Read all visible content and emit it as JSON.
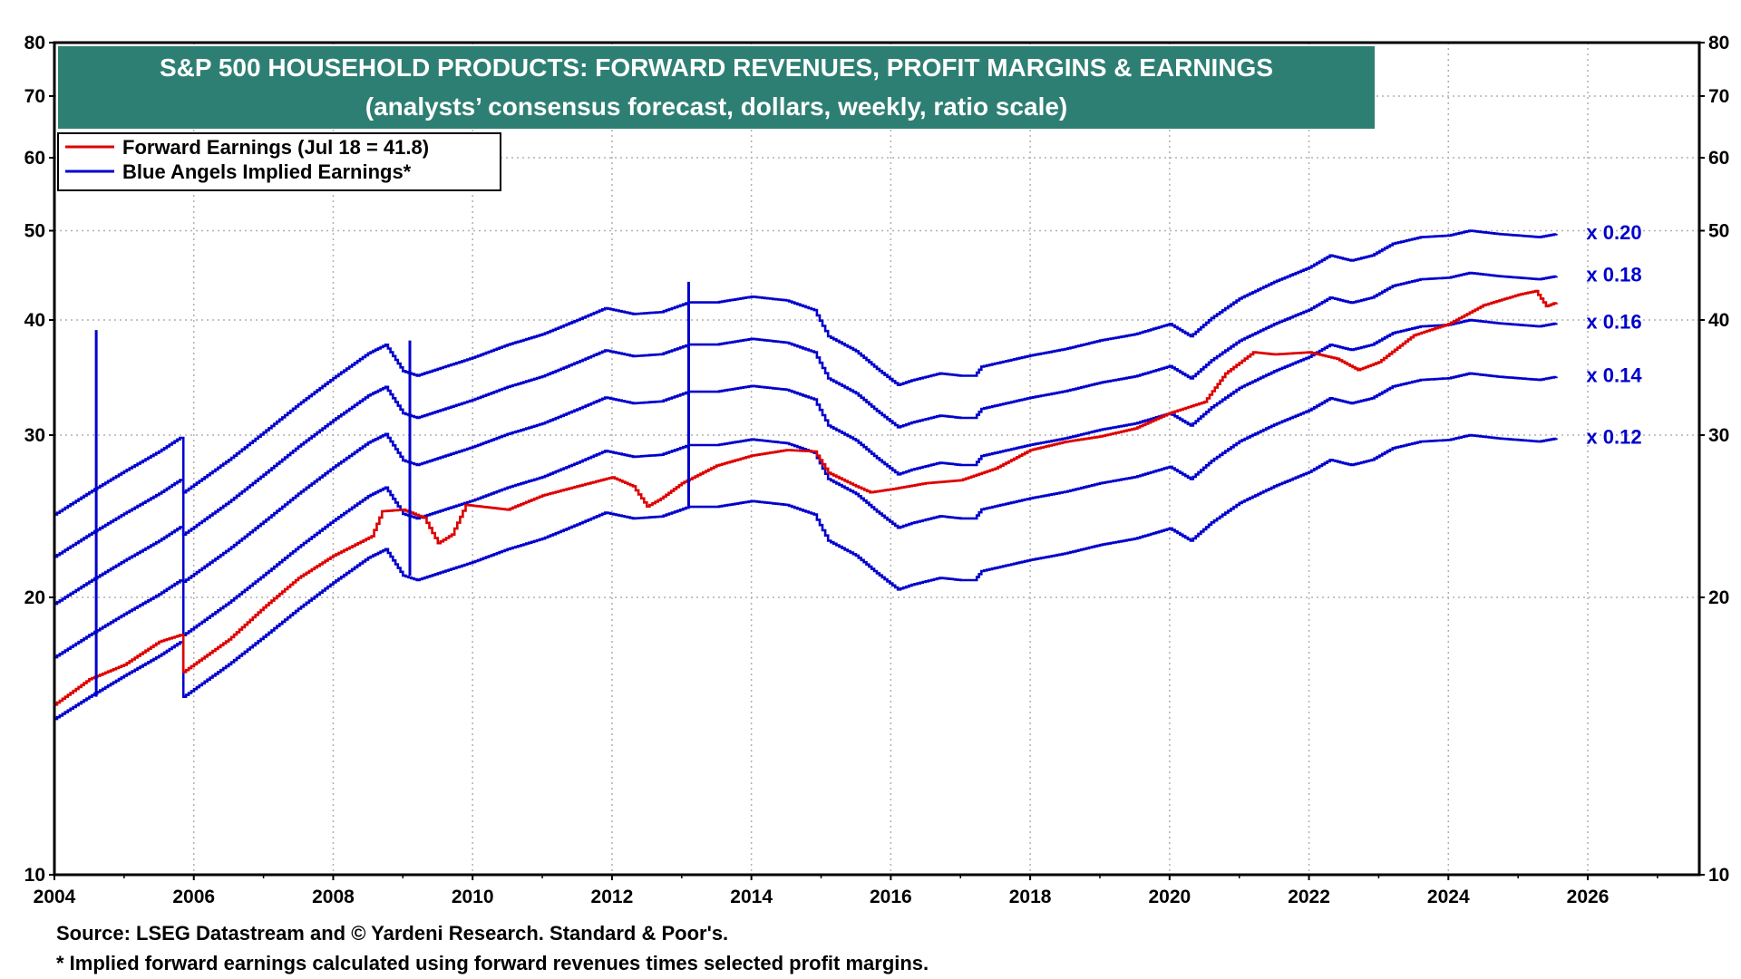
{
  "chart_data": {
    "type": "line",
    "title": "S&P 500 HOUSEHOLD PRODUCTS: FORWARD REVENUES, PROFIT MARGINS & EARNINGS",
    "subtitle": "(analysts’ consensus forecast, dollars, weekly, ratio scale)",
    "y_scale": "log",
    "ylim": [
      10,
      80
    ],
    "xlim": [
      2004,
      2027.6
    ],
    "y_ticks": [
      10,
      20,
      30,
      40,
      50,
      60,
      70,
      80
    ],
    "x_ticks": [
      2004,
      2006,
      2008,
      2010,
      2012,
      2014,
      2016,
      2018,
      2020,
      2022,
      2024,
      2026
    ],
    "grid": true,
    "legend_position": "top-left",
    "legend": [
      {
        "label": "Forward Earnings (Jul 18 = 41.8)",
        "color": "#dd0000"
      },
      {
        "label": "Blue Angels Implied Earnings*",
        "color": "#0000cc"
      }
    ],
    "forward_revenue_basis": [
      [
        2004.0,
        123
      ],
      [
        2004.5,
        130
      ],
      [
        2005.0,
        137
      ],
      [
        2005.5,
        144
      ],
      [
        2005.8,
        149
      ],
      [
        2005.85,
        130
      ],
      [
        2006.5,
        141
      ],
      [
        2007.0,
        151
      ],
      [
        2007.5,
        162
      ],
      [
        2008.0,
        173
      ],
      [
        2008.5,
        184
      ],
      [
        2008.75,
        188
      ],
      [
        2009.0,
        176
      ],
      [
        2009.2,
        174
      ],
      [
        2009.5,
        177
      ],
      [
        2010.0,
        182
      ],
      [
        2010.5,
        188
      ],
      [
        2011.0,
        193
      ],
      [
        2011.5,
        200
      ],
      [
        2011.9,
        206
      ],
      [
        2012.3,
        203
      ],
      [
        2012.7,
        204
      ],
      [
        2013.1,
        209
      ],
      [
        2013.5,
        209
      ],
      [
        2014.0,
        212
      ],
      [
        2014.5,
        210
      ],
      [
        2014.9,
        205
      ],
      [
        2015.1,
        192
      ],
      [
        2015.5,
        185
      ],
      [
        2015.8,
        177
      ],
      [
        2016.1,
        170
      ],
      [
        2016.3,
        172
      ],
      [
        2016.7,
        175
      ],
      [
        2017.0,
        174
      ],
      [
        2017.2,
        174
      ],
      [
        2017.3,
        178
      ],
      [
        2018.0,
        183
      ],
      [
        2018.5,
        186
      ],
      [
        2019.0,
        190
      ],
      [
        2019.5,
        193
      ],
      [
        2020.0,
        198
      ],
      [
        2020.3,
        192
      ],
      [
        2020.6,
        201
      ],
      [
        2021.0,
        211
      ],
      [
        2021.5,
        220
      ],
      [
        2022.0,
        228
      ],
      [
        2022.3,
        235
      ],
      [
        2022.6,
        232
      ],
      [
        2022.9,
        235
      ],
      [
        2023.2,
        242
      ],
      [
        2023.6,
        246
      ],
      [
        2024.0,
        247
      ],
      [
        2024.3,
        250
      ],
      [
        2024.7,
        248
      ],
      [
        2025.0,
        247
      ],
      [
        2025.3,
        246
      ],
      [
        2025.55,
        248
      ]
    ],
    "series": [
      {
        "name": "x 0.20",
        "multiplier": 0.2,
        "color": "#0000cc"
      },
      {
        "name": "x 0.18",
        "multiplier": 0.18,
        "color": "#0000cc"
      },
      {
        "name": "x 0.16",
        "multiplier": 0.16,
        "color": "#0000cc"
      },
      {
        "name": "x 0.14",
        "multiplier": 0.14,
        "color": "#0000cc"
      },
      {
        "name": "x 0.12",
        "multiplier": 0.12,
        "color": "#0000cc"
      },
      {
        "name": "Forward Earnings (Jul 18 = 41.8)",
        "color": "#dd0000",
        "points": [
          [
            2004.0,
            15.3
          ],
          [
            2004.5,
            16.3
          ],
          [
            2005.0,
            16.9
          ],
          [
            2005.5,
            17.9
          ],
          [
            2005.8,
            18.2
          ],
          [
            2005.85,
            16.6
          ],
          [
            2006.5,
            18.0
          ],
          [
            2007.0,
            19.5
          ],
          [
            2007.5,
            21.0
          ],
          [
            2008.0,
            22.2
          ],
          [
            2008.55,
            23.3
          ],
          [
            2008.7,
            24.8
          ],
          [
            2009.0,
            24.9
          ],
          [
            2009.3,
            24.4
          ],
          [
            2009.5,
            22.9
          ],
          [
            2009.7,
            23.4
          ],
          [
            2009.9,
            25.2
          ],
          [
            2010.5,
            24.9
          ],
          [
            2011.0,
            25.8
          ],
          [
            2011.5,
            26.4
          ],
          [
            2012.0,
            27.0
          ],
          [
            2012.3,
            26.4
          ],
          [
            2012.5,
            25.1
          ],
          [
            2012.7,
            25.6
          ],
          [
            2013.0,
            26.6
          ],
          [
            2013.5,
            27.8
          ],
          [
            2014.0,
            28.5
          ],
          [
            2014.5,
            28.9
          ],
          [
            2014.9,
            28.8
          ],
          [
            2015.1,
            27.3
          ],
          [
            2015.5,
            26.4
          ],
          [
            2015.7,
            26.0
          ],
          [
            2016.0,
            26.2
          ],
          [
            2016.5,
            26.6
          ],
          [
            2017.0,
            26.8
          ],
          [
            2017.5,
            27.6
          ],
          [
            2018.0,
            28.9
          ],
          [
            2018.5,
            29.5
          ],
          [
            2019.0,
            29.9
          ],
          [
            2019.5,
            30.5
          ],
          [
            2020.0,
            31.7
          ],
          [
            2020.5,
            32.6
          ],
          [
            2020.8,
            35.0
          ],
          [
            2021.2,
            36.9
          ],
          [
            2021.5,
            36.7
          ],
          [
            2022.0,
            36.9
          ],
          [
            2022.4,
            36.3
          ],
          [
            2022.7,
            35.3
          ],
          [
            2023.0,
            36.0
          ],
          [
            2023.5,
            38.5
          ],
          [
            2024.0,
            39.6
          ],
          [
            2024.5,
            41.5
          ],
          [
            2025.0,
            42.6
          ],
          [
            2025.25,
            43.0
          ],
          [
            2025.4,
            41.4
          ],
          [
            2025.55,
            41.8
          ]
        ]
      }
    ],
    "spikes": [
      {
        "x": 2004.6,
        "to": 39.0
      },
      {
        "x": 2009.1,
        "to": 38.0
      },
      {
        "x": 2013.1,
        "to": 44.0
      }
    ]
  },
  "footer": {
    "source": "Source: LSEG Datastream and © Yardeni Research. Standard & Poor's.",
    "note": "* Implied forward earnings calculated using forward revenues times selected profit margins."
  },
  "colors": {
    "title_bg": "#2e7f73",
    "blue": "#0000cc",
    "red": "#dd0000",
    "grid": "#b0b0b0"
  }
}
